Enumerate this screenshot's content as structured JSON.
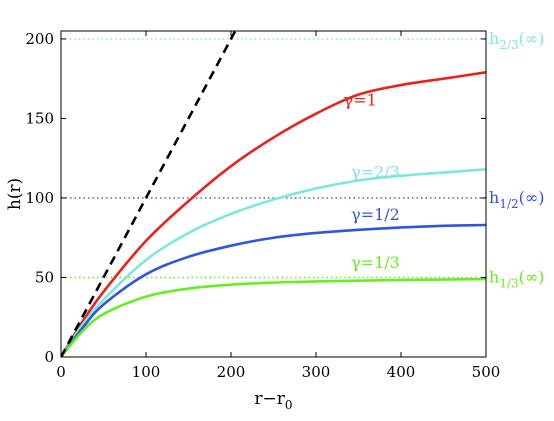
{
  "chart_data": {
    "type": "line",
    "xlabel": "r−r",
    "xlabel_sub": "0",
    "ylabel": "h(r)",
    "xlim": [
      0,
      500
    ],
    "ylim": [
      0,
      205
    ],
    "x_ticks": [
      0,
      100,
      200,
      300,
      400,
      500
    ],
    "y_ticks": [
      0,
      50,
      100,
      150,
      200
    ],
    "x_tick_labels": [
      "0",
      "100",
      "200",
      "300",
      "400",
      "500"
    ],
    "y_tick_labels": [
      "0",
      "50",
      "100",
      "150",
      "200"
    ],
    "grid": false,
    "series": [
      {
        "name": "γ=1",
        "color": "#e8221c",
        "style": "solid",
        "x": [
          0,
          25,
          50,
          100,
          150,
          200,
          250,
          300,
          350,
          400,
          450,
          500
        ],
        "y": [
          0,
          22,
          41,
          73,
          98,
          120,
          138,
          153,
          165,
          171,
          175,
          179
        ]
      },
      {
        "name": "γ=2/3",
        "color": "#7ee8d8",
        "style": "solid",
        "x": [
          0,
          25,
          50,
          100,
          150,
          200,
          250,
          300,
          350,
          400,
          450,
          500
        ],
        "y": [
          0,
          20,
          36,
          61,
          78,
          90,
          99,
          106,
          111,
          114,
          116,
          118
        ]
      },
      {
        "name": "γ=1/2",
        "color": "#3355dd",
        "style": "solid",
        "x": [
          0,
          25,
          50,
          100,
          150,
          200,
          250,
          300,
          350,
          400,
          450,
          500
        ],
        "y": [
          0,
          18,
          33,
          52,
          63,
          70,
          75,
          78,
          80,
          81.5,
          82.5,
          83
        ]
      },
      {
        "name": "γ=1/3",
        "color": "#66ee22",
        "style": "solid",
        "x": [
          0,
          25,
          50,
          100,
          150,
          200,
          250,
          300,
          350,
          400,
          450,
          500
        ],
        "y": [
          0,
          16,
          27,
          38,
          43,
          45.5,
          46.8,
          47.5,
          48,
          48.4,
          48.7,
          49
        ]
      },
      {
        "color": "#000000",
        "style": "dashed",
        "x": [
          0,
          205
        ],
        "y": [
          0,
          205
        ]
      }
    ],
    "reference_lines": [
      {
        "y": 200,
        "color": "#7ee8d8",
        "label_main": "h",
        "label_sub": "2/3",
        "label_tail": "(∞)"
      },
      {
        "y": 100,
        "color": "#3355dd",
        "label_main": "h",
        "label_sub": "1/2",
        "label_tail": "(∞)"
      },
      {
        "y": 50,
        "color": "#66ee22",
        "label_main": "h",
        "label_sub": "1/3",
        "label_tail": "(∞)"
      }
    ],
    "annotations": [
      {
        "text": "γ=1",
        "x": 352,
        "y": 158,
        "color": "#e8221c"
      },
      {
        "text": "γ=2/3",
        "x": 370,
        "y": 113,
        "color": "#7ee8d8"
      },
      {
        "text": "γ=1/2",
        "x": 370,
        "y": 86,
        "color": "#3355dd"
      },
      {
        "text": "γ=1/3",
        "x": 370,
        "y": 56,
        "color": "#66ee22"
      }
    ]
  }
}
